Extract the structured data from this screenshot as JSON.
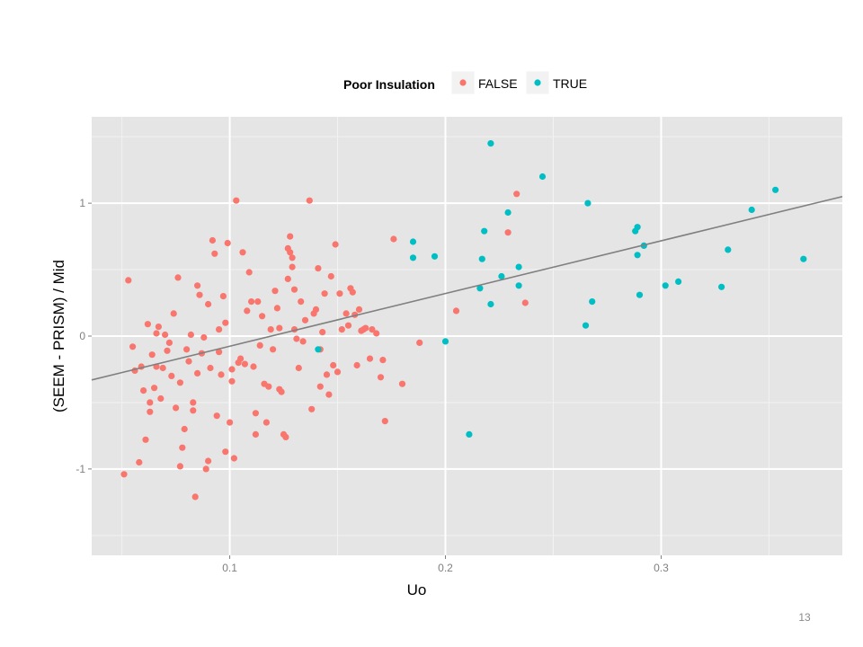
{
  "slide": {
    "number": "13"
  },
  "colors": {
    "FALSE": "#F8766D",
    "TRUE": "#00BFC4",
    "panel": "#E5E5E5",
    "grid": "#FFFFFF",
    "trend": "#808080"
  },
  "chart_data": {
    "type": "scatter",
    "title": "",
    "xlabel": "Uo",
    "ylabel": "(SEEM - PRISM) / Mid",
    "xlim": [
      0.036,
      0.384
    ],
    "ylim": [
      -1.65,
      1.65
    ],
    "x_ticks": [
      0.1,
      0.2,
      0.3
    ],
    "x_tick_labels": [
      "0.1",
      "0.2",
      "0.3"
    ],
    "y_ticks": [
      -1,
      0,
      1
    ],
    "y_tick_labels": [
      "-1",
      "0",
      "1"
    ],
    "grid": true,
    "legend": {
      "title": "Poor Insulation",
      "position": "top",
      "entries": [
        "FALSE",
        "TRUE"
      ]
    },
    "trend_line": {
      "x": [
        0.036,
        0.384
      ],
      "y": [
        -0.33,
        1.05
      ]
    },
    "series": [
      {
        "name": "FALSE",
        "points": [
          [
            0.051,
            -1.04
          ],
          [
            0.053,
            0.42
          ],
          [
            0.055,
            -0.08
          ],
          [
            0.056,
            -0.26
          ],
          [
            0.058,
            -0.95
          ],
          [
            0.059,
            -0.23
          ],
          [
            0.06,
            -0.41
          ],
          [
            0.061,
            -0.78
          ],
          [
            0.062,
            0.09
          ],
          [
            0.063,
            -0.57
          ],
          [
            0.063,
            -0.5
          ],
          [
            0.064,
            -0.14
          ],
          [
            0.065,
            -0.39
          ],
          [
            0.066,
            -0.23
          ],
          [
            0.066,
            0.02
          ],
          [
            0.067,
            0.07
          ],
          [
            0.068,
            -0.47
          ],
          [
            0.069,
            -0.24
          ],
          [
            0.07,
            0.01
          ],
          [
            0.071,
            -0.11
          ],
          [
            0.072,
            -0.05
          ],
          [
            0.073,
            -0.3
          ],
          [
            0.074,
            0.17
          ],
          [
            0.075,
            -0.54
          ],
          [
            0.076,
            0.44
          ],
          [
            0.077,
            -0.98
          ],
          [
            0.077,
            -0.35
          ],
          [
            0.078,
            -0.84
          ],
          [
            0.079,
            -0.7
          ],
          [
            0.08,
            -0.1
          ],
          [
            0.081,
            -0.19
          ],
          [
            0.082,
            0.01
          ],
          [
            0.083,
            -0.56
          ],
          [
            0.083,
            -0.5
          ],
          [
            0.084,
            -1.21
          ],
          [
            0.085,
            0.38
          ],
          [
            0.085,
            -0.28
          ],
          [
            0.086,
            0.31
          ],
          [
            0.087,
            -0.13
          ],
          [
            0.088,
            -0.01
          ],
          [
            0.089,
            -1.0
          ],
          [
            0.09,
            -0.94
          ],
          [
            0.09,
            0.24
          ],
          [
            0.091,
            -0.24
          ],
          [
            0.092,
            0.72
          ],
          [
            0.093,
            0.62
          ],
          [
            0.094,
            -0.6
          ],
          [
            0.095,
            -0.12
          ],
          [
            0.095,
            0.05
          ],
          [
            0.096,
            -0.29
          ],
          [
            0.097,
            0.3
          ],
          [
            0.098,
            -0.87
          ],
          [
            0.098,
            0.1
          ],
          [
            0.099,
            0.7
          ],
          [
            0.1,
            -0.65
          ],
          [
            0.101,
            -0.25
          ],
          [
            0.101,
            -0.34
          ],
          [
            0.102,
            -0.92
          ],
          [
            0.103,
            1.02
          ],
          [
            0.104,
            -0.2
          ],
          [
            0.105,
            -0.17
          ],
          [
            0.106,
            0.63
          ],
          [
            0.107,
            -0.21
          ],
          [
            0.108,
            0.19
          ],
          [
            0.109,
            0.48
          ],
          [
            0.11,
            0.26
          ],
          [
            0.111,
            -0.23
          ],
          [
            0.112,
            -0.58
          ],
          [
            0.112,
            -0.74
          ],
          [
            0.113,
            0.26
          ],
          [
            0.114,
            -0.07
          ],
          [
            0.115,
            0.15
          ],
          [
            0.116,
            -0.36
          ],
          [
            0.117,
            -0.65
          ],
          [
            0.118,
            -0.38
          ],
          [
            0.119,
            0.05
          ],
          [
            0.12,
            -0.1
          ],
          [
            0.121,
            0.34
          ],
          [
            0.122,
            0.21
          ],
          [
            0.123,
            0.06
          ],
          [
            0.123,
            -0.4
          ],
          [
            0.124,
            -0.42
          ],
          [
            0.125,
            -0.74
          ],
          [
            0.126,
            -0.76
          ],
          [
            0.127,
            0.43
          ],
          [
            0.127,
            0.66
          ],
          [
            0.128,
            0.75
          ],
          [
            0.128,
            0.63
          ],
          [
            0.129,
            0.59
          ],
          [
            0.129,
            0.52
          ],
          [
            0.13,
            0.05
          ],
          [
            0.13,
            0.35
          ],
          [
            0.131,
            -0.02
          ],
          [
            0.132,
            -0.24
          ],
          [
            0.133,
            0.26
          ],
          [
            0.134,
            -0.04
          ],
          [
            0.135,
            0.12
          ],
          [
            0.137,
            1.02
          ],
          [
            0.138,
            -0.55
          ],
          [
            0.139,
            0.17
          ],
          [
            0.14,
            0.2
          ],
          [
            0.141,
            0.51
          ],
          [
            0.142,
            -0.1
          ],
          [
            0.142,
            -0.38
          ],
          [
            0.143,
            0.03
          ],
          [
            0.144,
            0.32
          ],
          [
            0.145,
            -0.29
          ],
          [
            0.146,
            -0.44
          ],
          [
            0.147,
            0.45
          ],
          [
            0.148,
            -0.22
          ],
          [
            0.149,
            0.69
          ],
          [
            0.15,
            -0.27
          ],
          [
            0.151,
            0.32
          ],
          [
            0.152,
            0.05
          ],
          [
            0.154,
            0.17
          ],
          [
            0.155,
            0.08
          ],
          [
            0.156,
            0.36
          ],
          [
            0.157,
            0.33
          ],
          [
            0.158,
            0.16
          ],
          [
            0.159,
            -0.22
          ],
          [
            0.16,
            0.2
          ],
          [
            0.161,
            0.04
          ],
          [
            0.162,
            0.05
          ],
          [
            0.163,
            0.06
          ],
          [
            0.165,
            -0.17
          ],
          [
            0.166,
            0.05
          ],
          [
            0.168,
            0.02
          ],
          [
            0.17,
            -0.31
          ],
          [
            0.171,
            -0.18
          ],
          [
            0.172,
            -0.64
          ],
          [
            0.176,
            0.73
          ],
          [
            0.18,
            -0.36
          ],
          [
            0.188,
            -0.05
          ],
          [
            0.205,
            0.19
          ],
          [
            0.229,
            0.78
          ],
          [
            0.233,
            1.07
          ],
          [
            0.237,
            0.25
          ]
        ]
      },
      {
        "name": "TRUE",
        "points": [
          [
            0.141,
            -0.1
          ],
          [
            0.185,
            0.71
          ],
          [
            0.185,
            0.59
          ],
          [
            0.195,
            0.6
          ],
          [
            0.2,
            -0.04
          ],
          [
            0.211,
            -0.74
          ],
          [
            0.216,
            0.36
          ],
          [
            0.217,
            0.58
          ],
          [
            0.218,
            0.79
          ],
          [
            0.221,
            1.45
          ],
          [
            0.221,
            0.24
          ],
          [
            0.226,
            0.45
          ],
          [
            0.229,
            0.93
          ],
          [
            0.234,
            0.52
          ],
          [
            0.234,
            0.38
          ],
          [
            0.245,
            1.2
          ],
          [
            0.265,
            0.08
          ],
          [
            0.266,
            1.0
          ],
          [
            0.268,
            0.26
          ],
          [
            0.288,
            0.79
          ],
          [
            0.289,
            0.82
          ],
          [
            0.289,
            0.61
          ],
          [
            0.29,
            0.31
          ],
          [
            0.292,
            0.68
          ],
          [
            0.302,
            0.38
          ],
          [
            0.308,
            0.41
          ],
          [
            0.328,
            0.37
          ],
          [
            0.331,
            0.65
          ],
          [
            0.342,
            0.95
          ],
          [
            0.353,
            1.1
          ],
          [
            0.366,
            0.58
          ]
        ]
      }
    ]
  }
}
